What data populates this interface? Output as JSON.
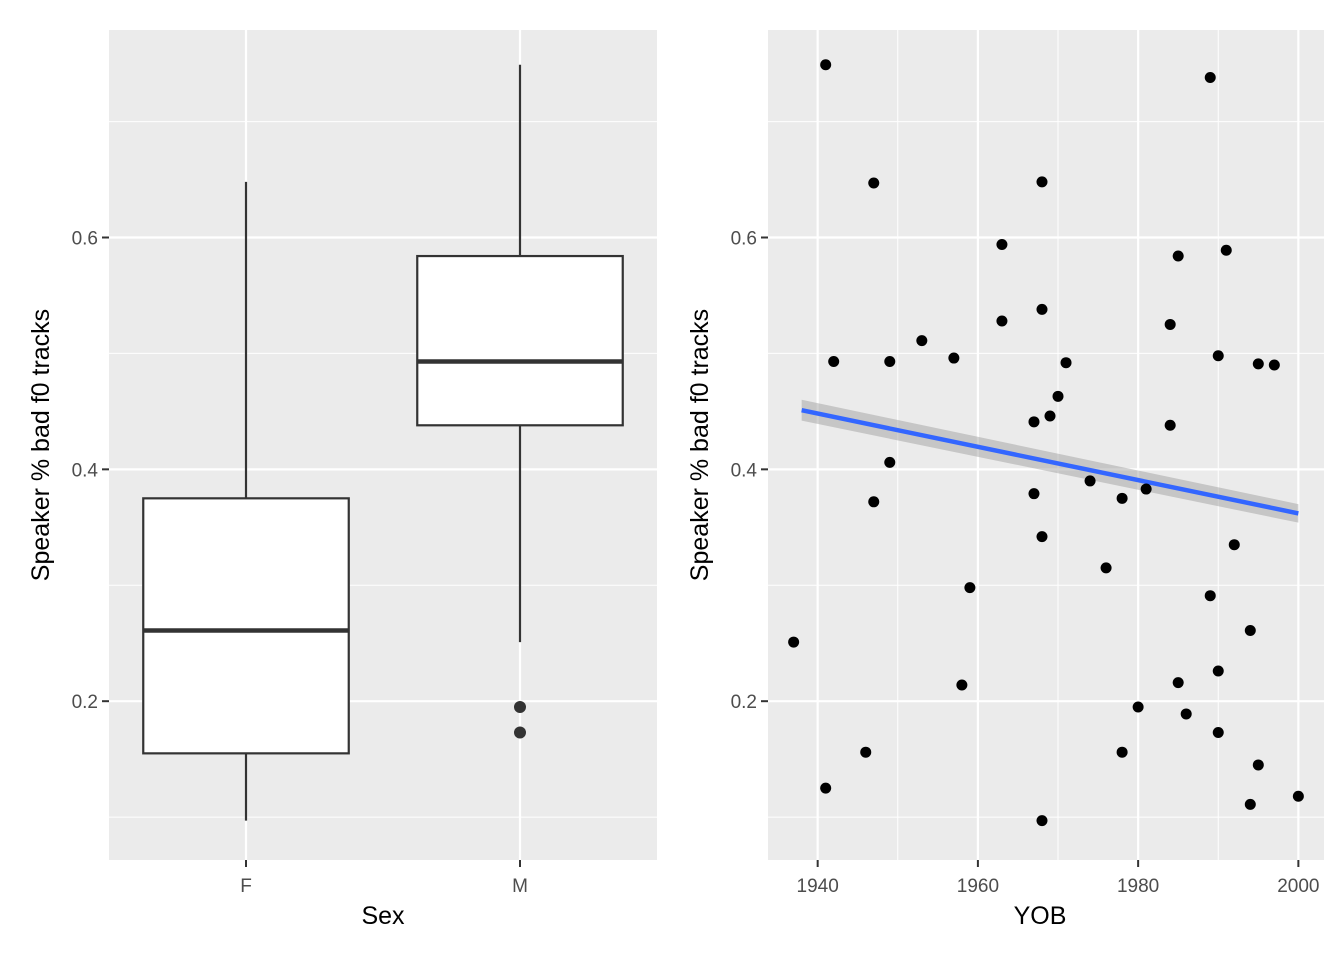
{
  "chart_data": [
    {
      "type": "box",
      "xlabel": "Sex",
      "ylabel": "Speaker % bad f0 tracks",
      "categories": [
        "F",
        "M"
      ],
      "boxes": [
        {
          "category": "F",
          "whisker_low": 0.097,
          "q1": 0.155,
          "median": 0.261,
          "q3": 0.375,
          "whisker_high": 0.648,
          "outliers": []
        },
        {
          "category": "M",
          "whisker_low": 0.251,
          "q1": 0.438,
          "median": 0.493,
          "q3": 0.584,
          "whisker_high": 0.749,
          "outliers": [
            0.195,
            0.173
          ]
        }
      ],
      "ylim": [
        0.063,
        0.779
      ],
      "y_ticks": [
        0.2,
        0.4,
        0.6
      ],
      "y_tick_labels": [
        "0.2",
        "0.4",
        "0.6"
      ],
      "grid": true
    },
    {
      "type": "scatter",
      "xlabel": "YOB",
      "ylabel": "Speaker % bad f0 tracks",
      "xlim": [
        1933.8,
        2003.2
      ],
      "ylim": [
        0.063,
        0.779
      ],
      "x_ticks": [
        1940,
        1960,
        1980,
        2000
      ],
      "x_tick_labels": [
        "1940",
        "1960",
        "1980",
        "2000"
      ],
      "y_ticks": [
        0.2,
        0.4,
        0.6
      ],
      "y_tick_labels": [
        "0.2",
        "0.4",
        "0.6"
      ],
      "grid": true,
      "points": [
        {
          "x": 1937,
          "y": 0.251
        },
        {
          "x": 1941,
          "y": 0.749
        },
        {
          "x": 1941,
          "y": 0.125
        },
        {
          "x": 1942,
          "y": 0.493
        },
        {
          "x": 1946,
          "y": 0.156
        },
        {
          "x": 1947,
          "y": 0.647
        },
        {
          "x": 1947,
          "y": 0.372
        },
        {
          "x": 1949,
          "y": 0.493
        },
        {
          "x": 1949,
          "y": 0.406
        },
        {
          "x": 1953,
          "y": 0.511
        },
        {
          "x": 1957,
          "y": 0.496
        },
        {
          "x": 1958,
          "y": 0.214
        },
        {
          "x": 1959,
          "y": 0.298
        },
        {
          "x": 1963,
          "y": 0.594
        },
        {
          "x": 1963,
          "y": 0.528
        },
        {
          "x": 1967,
          "y": 0.441
        },
        {
          "x": 1967,
          "y": 0.379
        },
        {
          "x": 1968,
          "y": 0.648
        },
        {
          "x": 1968,
          "y": 0.538
        },
        {
          "x": 1968,
          "y": 0.342
        },
        {
          "x": 1968,
          "y": 0.097
        },
        {
          "x": 1969,
          "y": 0.446
        },
        {
          "x": 1970,
          "y": 0.463
        },
        {
          "x": 1971,
          "y": 0.492
        },
        {
          "x": 1974,
          "y": 0.39
        },
        {
          "x": 1976,
          "y": 0.315
        },
        {
          "x": 1978,
          "y": 0.375
        },
        {
          "x": 1978,
          "y": 0.156
        },
        {
          "x": 1980,
          "y": 0.195
        },
        {
          "x": 1981,
          "y": 0.383
        },
        {
          "x": 1984,
          "y": 0.525
        },
        {
          "x": 1984,
          "y": 0.438
        },
        {
          "x": 1985,
          "y": 0.584
        },
        {
          "x": 1985,
          "y": 0.216
        },
        {
          "x": 1986,
          "y": 0.189
        },
        {
          "x": 1989,
          "y": 0.738
        },
        {
          "x": 1989,
          "y": 0.291
        },
        {
          "x": 1990,
          "y": 0.498
        },
        {
          "x": 1990,
          "y": 0.226
        },
        {
          "x": 1990,
          "y": 0.173
        },
        {
          "x": 1991,
          "y": 0.589
        },
        {
          "x": 1992,
          "y": 0.335
        },
        {
          "x": 1994,
          "y": 0.261
        },
        {
          "x": 1994,
          "y": 0.111
        },
        {
          "x": 1995,
          "y": 0.491
        },
        {
          "x": 1995,
          "y": 0.145
        },
        {
          "x": 1997,
          "y": 0.49
        },
        {
          "x": 2000,
          "y": 0.118
        }
      ],
      "trend": {
        "x": [
          1938,
          2000
        ],
        "y": [
          0.451,
          0.362
        ],
        "ci_low": [
          0.442,
          0.354
        ],
        "ci_high": [
          0.46,
          0.37
        ],
        "color": "#3366ff"
      }
    }
  ]
}
